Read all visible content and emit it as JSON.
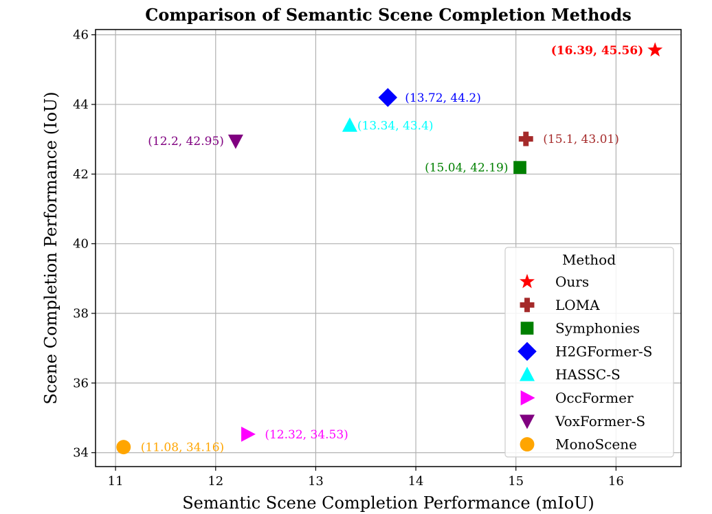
{
  "chart_data": {
    "type": "scatter",
    "title": "Comparison of Semantic Scene Completion Methods",
    "xlabel": "Semantic Scene Completion Performance (mIoU)",
    "ylabel": "Scene Completion Performance (IoU)",
    "xlim": [
      10.8,
      16.65
    ],
    "ylim": [
      33.6,
      46.15
    ],
    "xticks": [
      "11",
      "12",
      "13",
      "14",
      "15",
      "16"
    ],
    "yticks": [
      "34",
      "36",
      "38",
      "40",
      "42",
      "44",
      "46"
    ],
    "grid": true,
    "legend": {
      "title": "Method",
      "placement": "lower-right"
    },
    "series": [
      {
        "name": "Ours",
        "x": 16.39,
        "y": 45.56,
        "color": "#ff0000",
        "marker": "star",
        "label": "(16.39, 45.56)",
        "label_bold": true,
        "label_side": "left"
      },
      {
        "name": "LOMA",
        "x": 15.1,
        "y": 43.01,
        "color": "#a52a2a",
        "marker": "plus",
        "label": "(15.1, 43.01)",
        "label_side": "right"
      },
      {
        "name": "Symphonies",
        "x": 15.04,
        "y": 42.19,
        "color": "#008000",
        "marker": "square",
        "label": "(15.04, 42.19)",
        "label_side": "left"
      },
      {
        "name": "H2GFormer-S",
        "x": 13.72,
        "y": 44.2,
        "color": "#0000ff",
        "marker": "diamond",
        "label": "(13.72, 44.2)",
        "label_side": "right"
      },
      {
        "name": "HASSC-S",
        "x": 13.34,
        "y": 43.4,
        "color": "#00ffff",
        "marker": "triangle-up",
        "label": "(13.34, 43.4)",
        "label_side": "right-tight"
      },
      {
        "name": "OccFormer",
        "x": 12.32,
        "y": 34.53,
        "color": "#ff00ff",
        "marker": "triangle-right",
        "label": "(12.32, 34.53)",
        "label_side": "right"
      },
      {
        "name": "VoxFormer-S",
        "x": 12.2,
        "y": 42.95,
        "color": "#800080",
        "marker": "triangle-down",
        "label": "(12.2, 42.95)",
        "label_side": "left"
      },
      {
        "name": "MonoScene",
        "x": 11.08,
        "y": 34.16,
        "color": "#ffa500",
        "marker": "circle",
        "label": "(11.08, 34.16)",
        "label_side": "right"
      }
    ]
  }
}
